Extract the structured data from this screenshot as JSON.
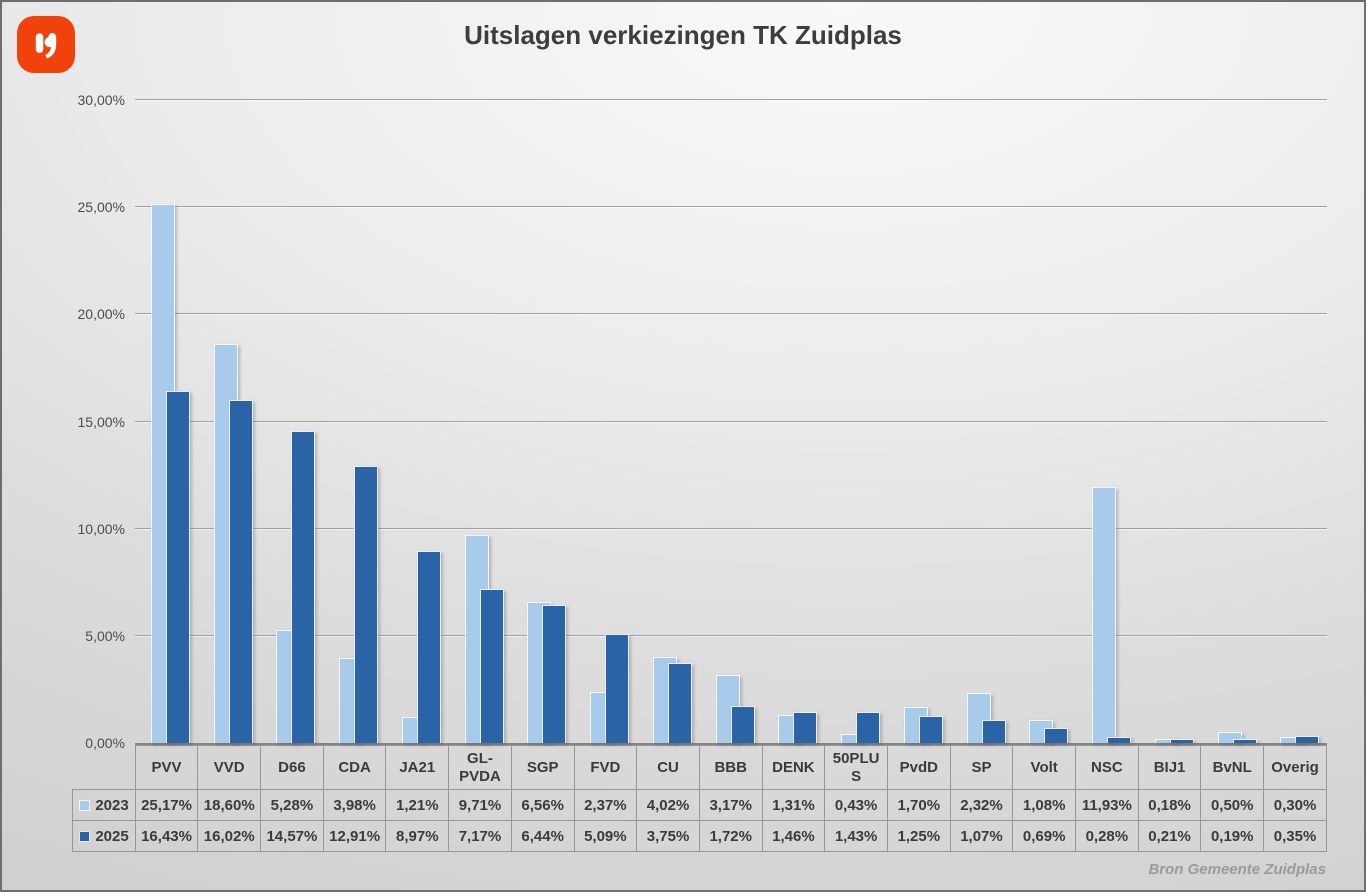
{
  "page": {
    "title": "Uitslagen verkiezingen TK Zuidplas",
    "source_note": "Bron Gemeente Zuidplas"
  },
  "logo": {
    "icon": "quote-comma-logo",
    "background_color": "#F2420B",
    "glyph_color": "#FFFFFF"
  },
  "colors": {
    "series_2023": "#A8CAEB",
    "series_2025": "#2A64A6",
    "gridline": "#A0A0A0",
    "text": "#3B3B3B"
  },
  "chart_data": {
    "type": "bar",
    "title": "Uitslagen verkiezingen TK Zuidplas",
    "categories": [
      "PVV",
      "VVD",
      "D66",
      "CDA",
      "JA21",
      "GL-PVDA",
      "SGP",
      "FVD",
      "CU",
      "BBB",
      "DENK",
      "50PLUS",
      "PvdD",
      "SP",
      "Volt",
      "NSC",
      "BIJ1",
      "BvNL",
      "Overig"
    ],
    "header_lines": [
      [
        "PVV"
      ],
      [
        "VVD"
      ],
      [
        "D66"
      ],
      [
        "CDA"
      ],
      [
        "JA21"
      ],
      [
        "GL-",
        "PVDA"
      ],
      [
        "SGP"
      ],
      [
        "FVD"
      ],
      [
        "CU"
      ],
      [
        "BBB"
      ],
      [
        "DENK"
      ],
      [
        "50PLU",
        "S"
      ],
      [
        "PvdD"
      ],
      [
        "SP"
      ],
      [
        "Volt"
      ],
      [
        "NSC"
      ],
      [
        "BIJ1"
      ],
      [
        "BvNL"
      ],
      [
        "Overig"
      ]
    ],
    "series": [
      {
        "name": "2023",
        "color": "#A8CAEB",
        "values": [
          25.17,
          18.6,
          5.28,
          3.98,
          1.21,
          9.71,
          6.56,
          2.37,
          4.02,
          3.17,
          1.31,
          0.43,
          1.7,
          2.32,
          1.08,
          11.93,
          0.18,
          0.5,
          0.3
        ],
        "labels": [
          "25,17%",
          "18,60%",
          "5,28%",
          "3,98%",
          "1,21%",
          "9,71%",
          "6,56%",
          "2,37%",
          "4,02%",
          "3,17%",
          "1,31%",
          "0,43%",
          "1,70%",
          "2,32%",
          "1,08%",
          "11,93%",
          "0,18%",
          "0,50%",
          "0,30%"
        ]
      },
      {
        "name": "2025",
        "color": "#2A64A6",
        "values": [
          16.43,
          16.02,
          14.57,
          12.91,
          8.97,
          7.17,
          6.44,
          5.09,
          3.75,
          1.72,
          1.46,
          1.43,
          1.25,
          1.07,
          0.69,
          0.28,
          0.21,
          0.19,
          0.35
        ],
        "labels": [
          "16,43%",
          "16,02%",
          "14,57%",
          "12,91%",
          "8,97%",
          "7,17%",
          "6,44%",
          "5,09%",
          "3,75%",
          "1,72%",
          "1,46%",
          "1,43%",
          "1,25%",
          "1,07%",
          "0,69%",
          "0,28%",
          "0,21%",
          "0,19%",
          "0,35%"
        ]
      }
    ],
    "ylim": [
      0,
      30
    ],
    "yticks": [
      "0,00%",
      "5,00%",
      "10,00%",
      "15,00%",
      "20,00%",
      "25,00%",
      "30,00%"
    ],
    "grid": true,
    "legend_position": "table-left-keys"
  }
}
